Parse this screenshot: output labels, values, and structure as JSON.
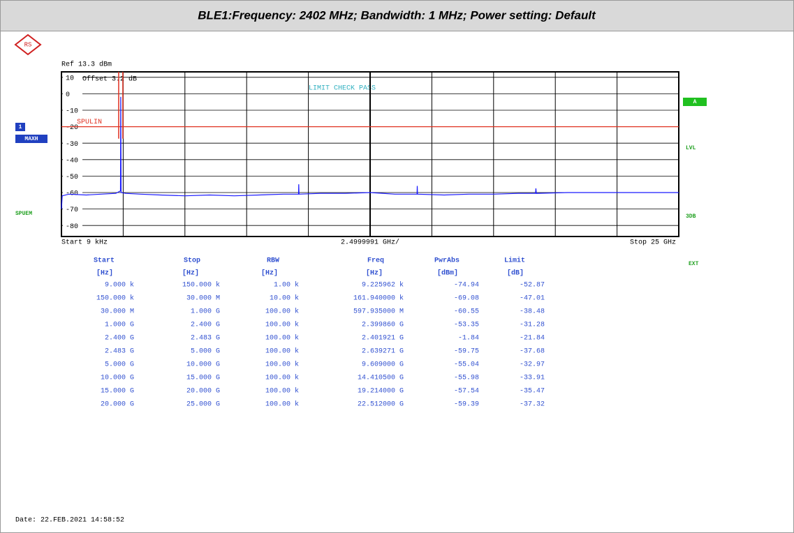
{
  "header": {
    "title": "BLE1:Frequency: 2402 MHz; Bandwidth: 1 MHz; Power setting: Default"
  },
  "screen": {
    "ref": "Ref  13.3 dBm",
    "offset": "Offset  3.2 dB",
    "limit_check": "LIMIT CHECK   PASS",
    "left_labels": [
      "1",
      "MAXH",
      "SPUEM"
    ],
    "right_labels": [
      "A",
      "LVL",
      "3DB",
      "EXT"
    ],
    "start": "Start  9 kHz",
    "span": "2.4999991 GHz/",
    "stop": "Stop  25 GHz"
  },
  "chart_data": {
    "type": "line",
    "color": "#1a1aff",
    "x": [
      9e-06,
      0.03,
      0.3,
      1.0,
      1.6,
      2.2,
      2.39,
      2.402,
      2.415,
      2.6,
      3.2,
      4.0,
      5.0,
      6.0,
      7.0,
      8.0,
      9.0,
      9.6,
      9.609,
      9.62,
      10.5,
      11.5,
      12.5,
      13.5,
      14.4,
      14.41,
      14.42,
      15.5,
      16.5,
      17.5,
      18.5,
      19.2,
      19.214,
      19.23,
      20.5,
      21.5,
      22.5,
      23.5,
      24.5,
      25
    ],
    "values": [
      -70,
      -62,
      -61,
      -61.5,
      -61,
      -60.5,
      -59,
      -1.84,
      -60,
      -60.5,
      -61,
      -61.5,
      -62,
      -61.5,
      -62,
      -61.5,
      -61,
      -61,
      -55,
      -61,
      -60.5,
      -60.5,
      -60,
      -61,
      -61,
      -56,
      -61,
      -61.5,
      -61,
      -61,
      -60.5,
      -60.5,
      -57.5,
      -60.5,
      -60,
      -60,
      -60,
      -60,
      -60,
      -60
    ],
    "xlim": [
      9e-06,
      25
    ],
    "ylim": [
      -86.7,
      13.3
    ],
    "yticks": [
      10,
      0,
      -10,
      -20,
      -30,
      -40,
      -50,
      -60,
      -70,
      -80
    ],
    "limit": {
      "label": "SPULIN",
      "value": -20,
      "color": "#e03020"
    },
    "grid": true
  },
  "table": {
    "header": [
      "Start",
      "Stop",
      "RBW",
      "Freq",
      "PwrAbs",
      "Limit"
    ],
    "units": [
      "[Hz]",
      "[Hz]",
      "[Hz]",
      "[Hz]",
      "[dBm]",
      "[dB]"
    ],
    "rows": [
      [
        "9.000 k",
        "150.000 k",
        "1.00 k",
        "9.225962 k",
        "-74.94",
        "-52.87"
      ],
      [
        "150.000 k",
        "30.000 M",
        "10.00 k",
        "161.940000 k",
        "-69.08",
        "-47.01"
      ],
      [
        "30.000 M",
        "1.000 G",
        "100.00 k",
        "597.935000 M",
        "-60.55",
        "-38.48"
      ],
      [
        "1.000 G",
        "2.400 G",
        "100.00 k",
        "2.399860 G",
        "-53.35",
        "-31.28"
      ],
      [
        "2.400 G",
        "2.483 G",
        "100.00 k",
        "2.401921 G",
        "-1.84",
        "-21.84"
      ],
      [
        "2.483 G",
        "5.000 G",
        "100.00 k",
        "2.639271 G",
        "-59.75",
        "-37.68"
      ],
      [
        "5.000 G",
        "10.000 G",
        "100.00 k",
        "9.609000 G",
        "-55.04",
        "-32.97"
      ],
      [
        "10.000 G",
        "15.000 G",
        "100.00 k",
        "14.410500 G",
        "-55.98",
        "-33.91"
      ],
      [
        "15.000 G",
        "20.000 G",
        "100.00 k",
        "19.214000 G",
        "-57.54",
        "-35.47"
      ],
      [
        "20.000 G",
        "25.000 G",
        "100.00 k",
        "22.512000 G",
        "-59.39",
        "-37.32"
      ]
    ]
  },
  "footer": {
    "date": "Date: 22.FEB.2021  14:58:52"
  }
}
